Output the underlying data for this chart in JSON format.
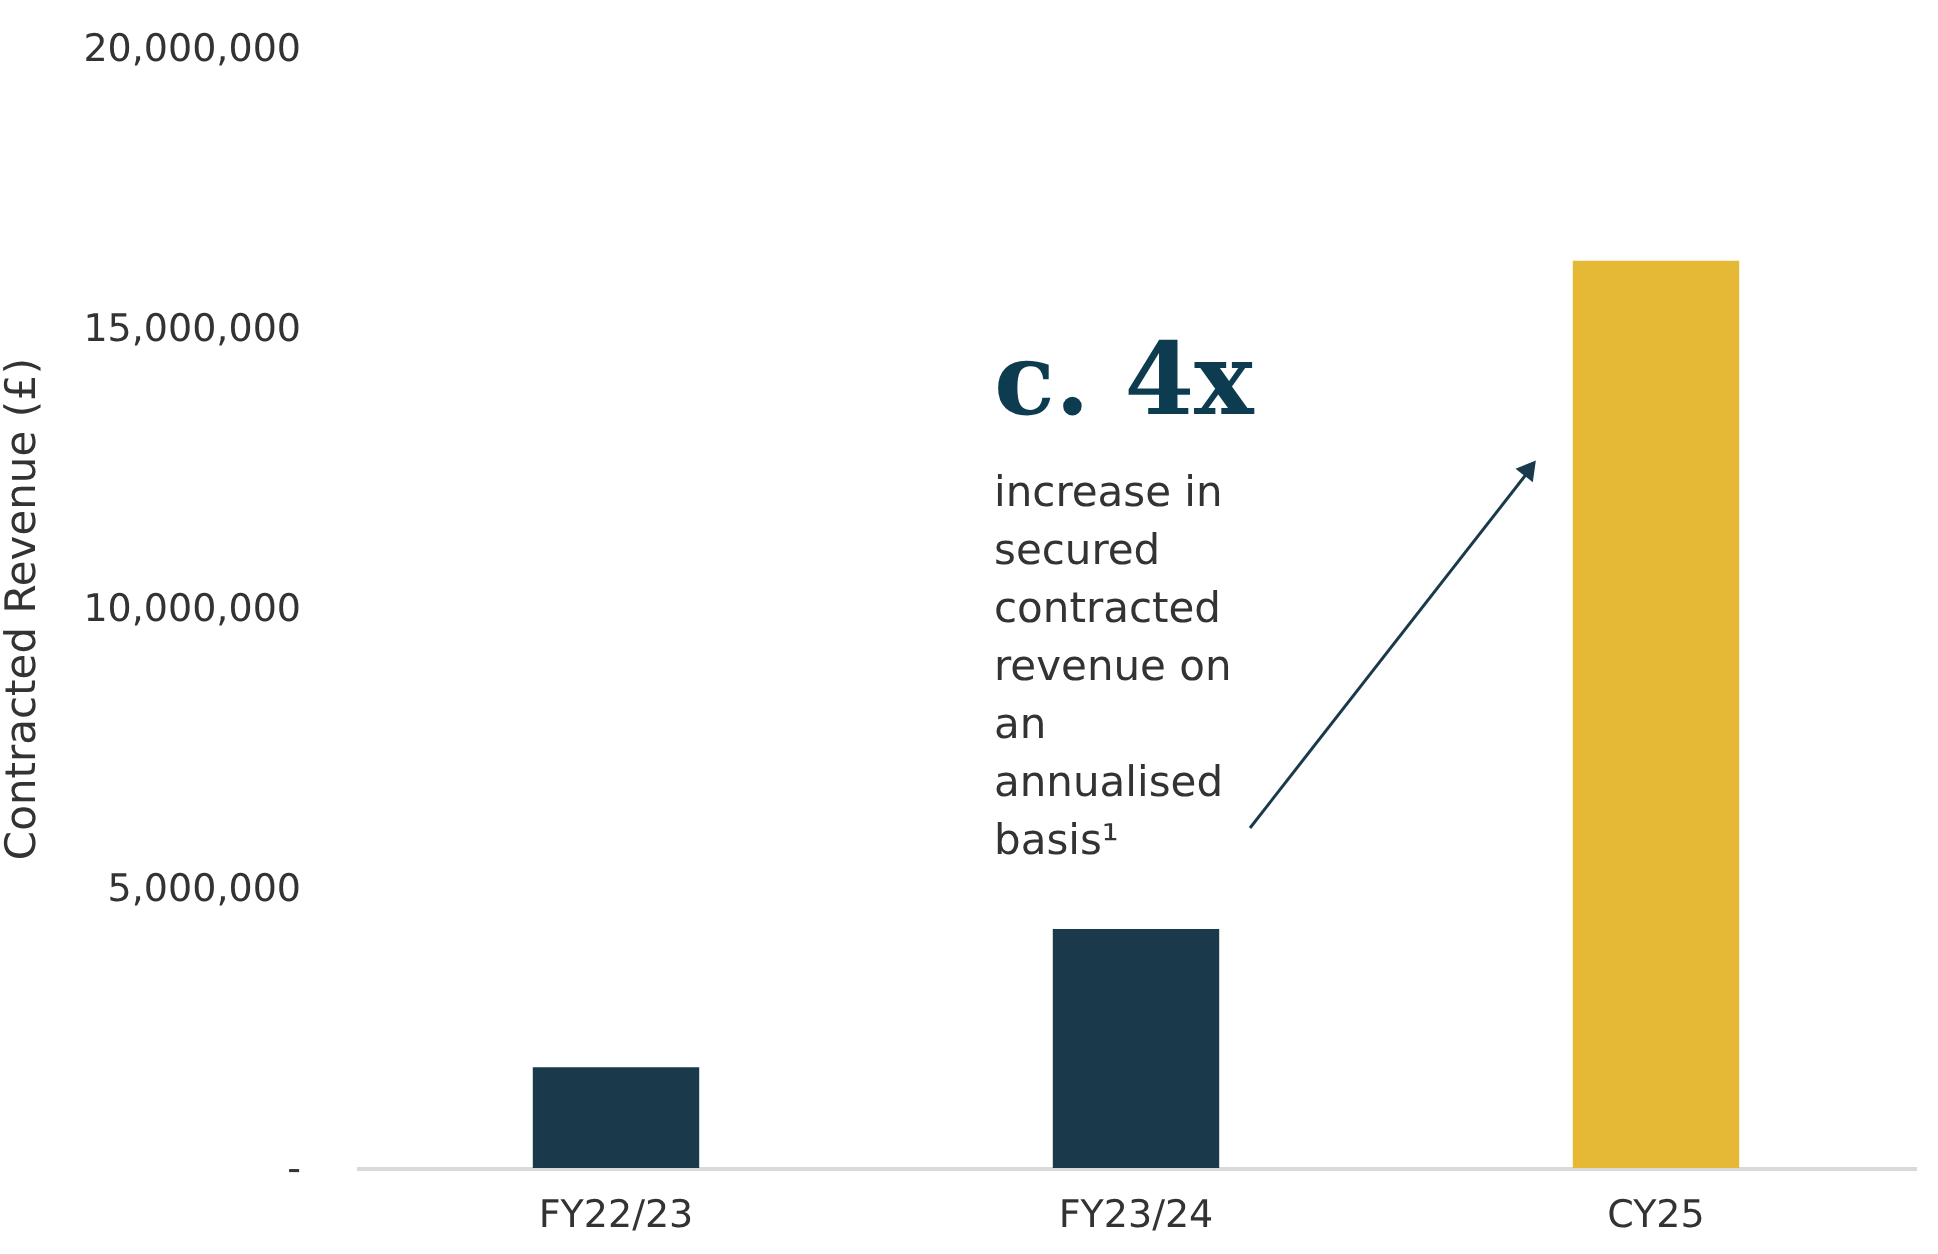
{
  "chart_data": {
    "type": "bar",
    "ylabel": "Contracted Revenue (£)",
    "categories": [
      "FY22/23",
      "FY23/24",
      "CY25"
    ],
    "values": [
      1800000,
      4270000,
      16200000
    ],
    "colors": [
      "#1a3a4c",
      "#1a3a4c",
      "#e5b935"
    ],
    "ylim": [
      0,
      20000000
    ],
    "yticks": [
      {
        "value": 0,
        "label": "-"
      },
      {
        "value": 5000000,
        "label": "5,000,000"
      },
      {
        "value": 10000000,
        "label": "10,000,000"
      },
      {
        "value": 15000000,
        "label": "15,000,000"
      },
      {
        "value": 20000000,
        "label": "20,000,000"
      }
    ],
    "grid": false,
    "annotations": [
      "c. 4x",
      "increase in secured contracted revenue on an annualised basis¹"
    ]
  }
}
